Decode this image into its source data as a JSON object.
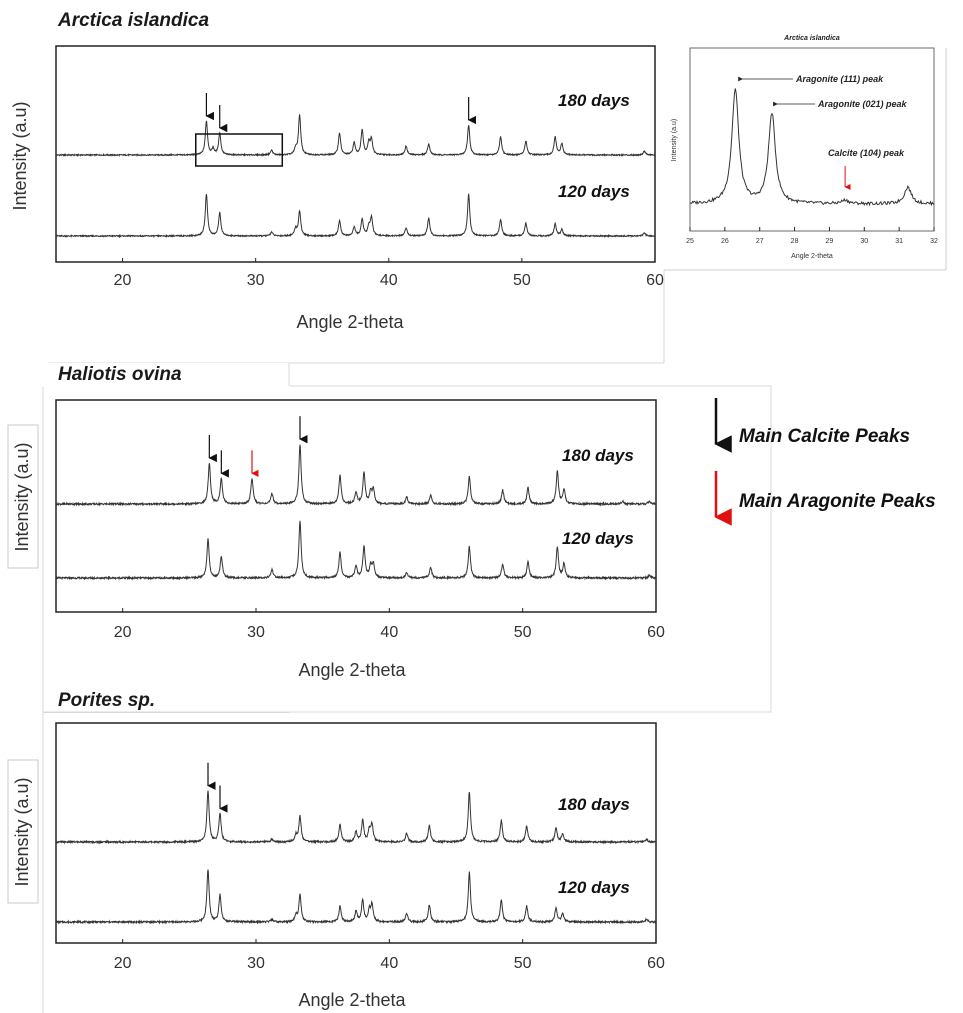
{
  "legend": {
    "black_label": "Main Calcite Peaks",
    "red_label": "Main Aragonite Peaks",
    "black_color": "#111111",
    "red_color": "#e01010"
  },
  "chart_data": [
    {
      "type": "line",
      "title": "Arctica islandica",
      "xlabel": "Angle 2-theta",
      "ylabel": "Intensity (a.u)",
      "xlim": [
        15,
        60
      ],
      "xticks": [
        20,
        30,
        40,
        50,
        60
      ],
      "series": [
        {
          "name": "180 days",
          "peaks": [
            [
              26.3,
              0.85
            ],
            [
              26.8,
              0.15
            ],
            [
              27.3,
              0.55
            ],
            [
              31.2,
              0.12
            ],
            [
              33.0,
              0.15
            ],
            [
              33.3,
              1.0
            ],
            [
              36.3,
              0.55
            ],
            [
              37.4,
              0.3
            ],
            [
              38.0,
              0.62
            ],
            [
              38.5,
              0.3
            ],
            [
              38.7,
              0.38
            ],
            [
              41.3,
              0.22
            ],
            [
              43.0,
              0.28
            ],
            [
              46.0,
              0.75
            ],
            [
              48.4,
              0.45
            ],
            [
              50.3,
              0.35
            ],
            [
              52.5,
              0.45
            ],
            [
              53.0,
              0.28
            ],
            [
              59.2,
              0.1
            ]
          ]
        },
        {
          "name": "120 days",
          "peaks": [
            [
              26.3,
              1.05
            ],
            [
              27.3,
              0.58
            ],
            [
              31.2,
              0.1
            ],
            [
              33.0,
              0.18
            ],
            [
              33.3,
              0.62
            ],
            [
              36.3,
              0.38
            ],
            [
              37.4,
              0.22
            ],
            [
              38.0,
              0.42
            ],
            [
              38.5,
              0.22
            ],
            [
              38.7,
              0.46
            ],
            [
              41.3,
              0.2
            ],
            [
              43.0,
              0.45
            ],
            [
              46.0,
              1.05
            ],
            [
              48.4,
              0.42
            ],
            [
              50.3,
              0.32
            ],
            [
              52.5,
              0.3
            ],
            [
              53.0,
              0.16
            ],
            [
              59.2,
              0.08
            ]
          ]
        }
      ],
      "markers": [
        {
          "x": 26.3,
          "series": "180 days",
          "type": "calcite"
        },
        {
          "x": 27.3,
          "series": "180 days",
          "type": "calcite"
        },
        {
          "x": 46.0,
          "series": "180 days",
          "type": "calcite"
        }
      ],
      "zoom_box_x": [
        25.5,
        32
      ]
    },
    {
      "type": "line",
      "title": "Arctica islandica",
      "xlabel": "Angle 2-theta",
      "ylabel": "Intensity (a.u)",
      "xlim": [
        25,
        32
      ],
      "xticks": [
        25,
        26,
        27,
        28,
        29,
        30,
        31,
        32
      ],
      "series": [
        {
          "peaks": [
            [
              26.3,
              1.9
            ],
            [
              27.35,
              1.5
            ],
            [
              29.45,
              0.06
            ],
            [
              31.25,
              0.28
            ]
          ]
        }
      ],
      "annotations": [
        {
          "text": "Aragonite (111) peak",
          "x": 26.4
        },
        {
          "text": "Aragonite (021) peak",
          "x": 27.4
        },
        {
          "text": "Calcite (104) peak",
          "x": 29.45
        }
      ]
    },
    {
      "type": "line",
      "title": "Haliotis ovina",
      "xlabel": "Angle 2-theta",
      "ylabel": "Intensity (a.u)",
      "xlim": [
        15,
        60
      ],
      "xticks": [
        20,
        30,
        40,
        50,
        60
      ],
      "series": [
        {
          "name": "180 days",
          "peaks": [
            [
              26.5,
              0.72
            ],
            [
              27.4,
              0.45
            ],
            [
              29.7,
              0.45
            ],
            [
              31.2,
              0.18
            ],
            [
              33.3,
              1.05
            ],
            [
              36.3,
              0.5
            ],
            [
              37.5,
              0.2
            ],
            [
              38.1,
              0.55
            ],
            [
              38.6,
              0.2
            ],
            [
              38.8,
              0.25
            ],
            [
              41.3,
              0.12
            ],
            [
              43.1,
              0.15
            ],
            [
              46.0,
              0.48
            ],
            [
              48.5,
              0.25
            ],
            [
              50.4,
              0.28
            ],
            [
              52.6,
              0.58
            ],
            [
              53.1,
              0.25
            ],
            [
              57.5,
              0.05
            ],
            [
              59.5,
              0.05
            ]
          ]
        },
        {
          "name": "120 days",
          "peaks": [
            [
              26.4,
              0.68
            ],
            [
              27.4,
              0.38
            ],
            [
              31.2,
              0.15
            ],
            [
              33.3,
              1.0
            ],
            [
              36.3,
              0.45
            ],
            [
              37.5,
              0.2
            ],
            [
              38.1,
              0.55
            ],
            [
              38.6,
              0.2
            ],
            [
              38.8,
              0.25
            ],
            [
              41.3,
              0.1
            ],
            [
              43.1,
              0.18
            ],
            [
              46.0,
              0.55
            ],
            [
              48.5,
              0.25
            ],
            [
              50.4,
              0.28
            ],
            [
              52.6,
              0.55
            ],
            [
              53.1,
              0.25
            ],
            [
              59.5,
              0.05
            ]
          ]
        }
      ],
      "markers": [
        {
          "x": 26.5,
          "series": "180 days",
          "type": "calcite"
        },
        {
          "x": 27.4,
          "series": "180 days",
          "type": "calcite"
        },
        {
          "x": 29.7,
          "series": "180 days",
          "type": "aragonite"
        },
        {
          "x": 33.3,
          "series": "180 days",
          "type": "calcite"
        }
      ]
    },
    {
      "type": "line",
      "title": "Porites sp.",
      "xlabel": "Angle 2-theta",
      "ylabel": "Intensity (a.u)",
      "xlim": [
        15,
        60
      ],
      "xticks": [
        20,
        30,
        40,
        50,
        60
      ],
      "series": [
        {
          "name": "180 days",
          "peaks": [
            [
              26.4,
              0.9
            ],
            [
              27.3,
              0.5
            ],
            [
              31.2,
              0.05
            ],
            [
              33.0,
              0.12
            ],
            [
              33.3,
              0.45
            ],
            [
              36.3,
              0.3
            ],
            [
              37.5,
              0.18
            ],
            [
              38.0,
              0.38
            ],
            [
              38.5,
              0.2
            ],
            [
              38.7,
              0.3
            ],
            [
              41.3,
              0.15
            ],
            [
              43.0,
              0.3
            ],
            [
              46.0,
              0.88
            ],
            [
              48.4,
              0.38
            ],
            [
              50.3,
              0.28
            ],
            [
              52.5,
              0.25
            ],
            [
              53.0,
              0.15
            ],
            [
              59.3,
              0.05
            ]
          ]
        },
        {
          "name": "120 days",
          "peaks": [
            [
              26.4,
              0.92
            ],
            [
              27.3,
              0.48
            ],
            [
              31.2,
              0.05
            ],
            [
              33.0,
              0.12
            ],
            [
              33.3,
              0.48
            ],
            [
              36.3,
              0.28
            ],
            [
              37.5,
              0.18
            ],
            [
              38.0,
              0.38
            ],
            [
              38.5,
              0.2
            ],
            [
              38.7,
              0.3
            ],
            [
              41.3,
              0.15
            ],
            [
              43.0,
              0.3
            ],
            [
              46.0,
              0.88
            ],
            [
              48.4,
              0.38
            ],
            [
              50.3,
              0.28
            ],
            [
              52.5,
              0.25
            ],
            [
              53.0,
              0.15
            ],
            [
              59.3,
              0.05
            ]
          ]
        }
      ],
      "markers": [
        {
          "x": 26.4,
          "series": "180 days",
          "type": "calcite"
        },
        {
          "x": 27.3,
          "series": "180 days",
          "type": "calcite"
        }
      ]
    }
  ]
}
